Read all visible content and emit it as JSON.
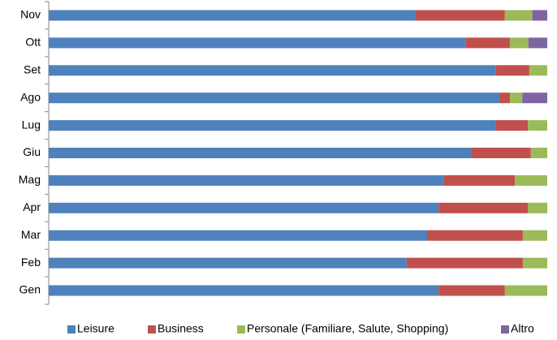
{
  "chart_data": {
    "type": "stacked-bar-horizontal",
    "categories": [
      "Nov",
      "Ott",
      "Set",
      "Ago",
      "Lug",
      "Giu",
      "Mag",
      "Apr",
      "Mar",
      "Feb",
      "Gen"
    ],
    "series": [
      {
        "name": "Leisure",
        "color": "#4f81bd",
        "values": [
          73.6,
          83.6,
          89.7,
          90.4,
          89.6,
          84.7,
          79.2,
          78.2,
          75.9,
          71.8,
          78.2
        ]
      },
      {
        "name": "Business",
        "color": "#c0504d",
        "values": [
          17.9,
          8.9,
          6.7,
          2.1,
          6.5,
          12.0,
          14.3,
          17.9,
          19.2,
          23.3,
          13.3
        ]
      },
      {
        "name": "Personale (Familiare, Salute, Shopping)",
        "color": "#9bbb59",
        "values": [
          5.5,
          3.7,
          3.6,
          2.5,
          3.9,
          3.3,
          6.5,
          3.9,
          4.9,
          4.9,
          8.5
        ]
      },
      {
        "name": "Altro",
        "color": "#8064a2",
        "values": [
          3.0,
          3.8,
          0,
          5.0,
          0,
          0,
          0,
          0,
          0,
          0,
          0
        ]
      }
    ],
    "xlim": [
      0,
      100
    ]
  }
}
